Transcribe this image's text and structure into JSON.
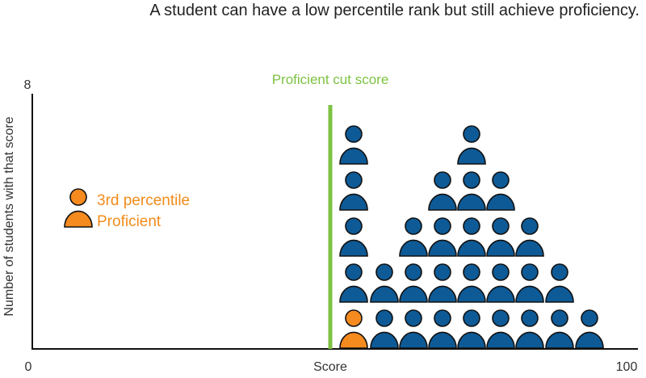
{
  "title": "A student can have a low percentile rank but still achieve proficiency.",
  "colors": {
    "students": "#0e5a96",
    "highlight": "#f58a1f",
    "cut_line": "#7dc242",
    "axis": "#111111"
  },
  "chart_data": {
    "type": "scatter",
    "marker": "person-icon",
    "xlabel": "Score",
    "ylabel": "Number of students with that score",
    "xlim": [
      0,
      100
    ],
    "ylim": [
      0,
      8
    ],
    "x_ticks": [
      "0",
      "100"
    ],
    "y_ticks": [
      "8"
    ],
    "cut_score": {
      "label": "Proficient cut score",
      "x": 51
    },
    "students": [
      {
        "x": 55,
        "count": 5,
        "highlight_bottom": true
      },
      {
        "x": 60,
        "count": 2
      },
      {
        "x": 65,
        "count": 3
      },
      {
        "x": 70,
        "count": 4
      },
      {
        "x": 75,
        "count": 5
      },
      {
        "x": 80,
        "count": 4
      },
      {
        "x": 85,
        "count": 3
      },
      {
        "x": 90,
        "count": 2
      },
      {
        "x": 95,
        "count": 1
      }
    ],
    "legend": {
      "lines": [
        "3rd percentile",
        "Proficient"
      ]
    }
  }
}
